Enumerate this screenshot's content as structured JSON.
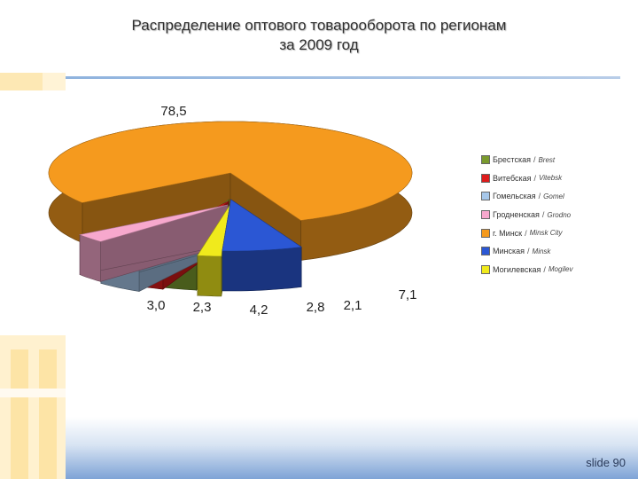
{
  "title": {
    "line1": "Распределение оптового товарооборота по регионам",
    "line2": "за 2009 год"
  },
  "footer": {
    "slide": "slide 90"
  },
  "chart_data": {
    "type": "pie",
    "title": "Распределение оптового товарооборота по регионам за 2009 год",
    "exploded": true,
    "three_d": true,
    "legend_position": "right",
    "slices": [
      {
        "ru": "Брестская",
        "en": "Brest",
        "value": 3.0,
        "label": "3,0",
        "color": "#7a9a2e"
      },
      {
        "ru": "Витебская",
        "en": "Vitebsk",
        "value": 2.3,
        "label": "2,3",
        "color": "#dd1c1c"
      },
      {
        "ru": "Гомельская",
        "en": "Gomel",
        "value": 4.2,
        "label": "4,2",
        "color": "#a6c7ea"
      },
      {
        "ru": "Гродненская",
        "en": "Grodno",
        "value": 2.8,
        "label": "2,8",
        "color": "#f7a8cd"
      },
      {
        "ru": "г. Минск",
        "en": "Minsk City",
        "value": 78.5,
        "label": "78,5",
        "color": "#f59a1e"
      },
      {
        "ru": "Минская",
        "en": "Minsk",
        "value": 7.1,
        "label": "7,1",
        "color": "#2b57d4"
      },
      {
        "ru": "Могилевская",
        "en": "Mogilev",
        "value": 2.1,
        "label": "2,1",
        "color": "#f0ea1c"
      }
    ]
  }
}
